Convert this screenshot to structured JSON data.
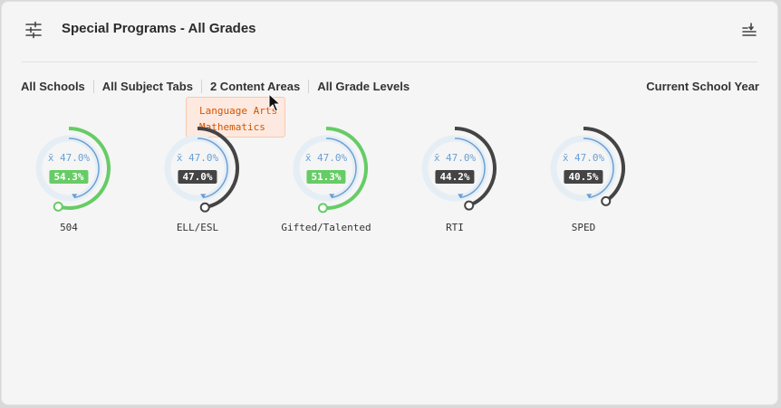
{
  "header": {
    "title": "Special Programs - All Grades",
    "filter_icon": "sliders-icon",
    "sort_icon": "sort-list-icon"
  },
  "filters": {
    "schools": "All Schools",
    "subject_tabs": "All Subject Tabs",
    "content_areas": "2 Content Areas",
    "grade_levels": "All Grade Levels",
    "school_year": "Current School Year"
  },
  "tooltip": {
    "items": [
      "Language Arts",
      "Mathematics"
    ]
  },
  "colors": {
    "above_avg": "#66cc66",
    "below_avg": "#444444",
    "avg_arc": "#6a9fd4",
    "track": "#e6eef5"
  },
  "gauges": [
    {
      "label": "504",
      "value": 54.3,
      "value_text": "54.3%",
      "avg_text": "x̄ 47.0%",
      "status": "above"
    },
    {
      "label": "ELL/ESL",
      "value": 47.0,
      "value_text": "47.0%",
      "avg_text": "x̄ 47.0%",
      "status": "below"
    },
    {
      "label": "Gifted/Talented",
      "value": 51.3,
      "value_text": "51.3%",
      "avg_text": "x̄ 47.0%",
      "status": "above"
    },
    {
      "label": "RTI",
      "value": 44.2,
      "value_text": "44.2%",
      "avg_text": "x̄ 47.0%",
      "status": "below"
    },
    {
      "label": "SPED",
      "value": 40.5,
      "value_text": "40.5%",
      "avg_text": "x̄ 47.0%",
      "status": "below"
    }
  ],
  "average": 47.0
}
